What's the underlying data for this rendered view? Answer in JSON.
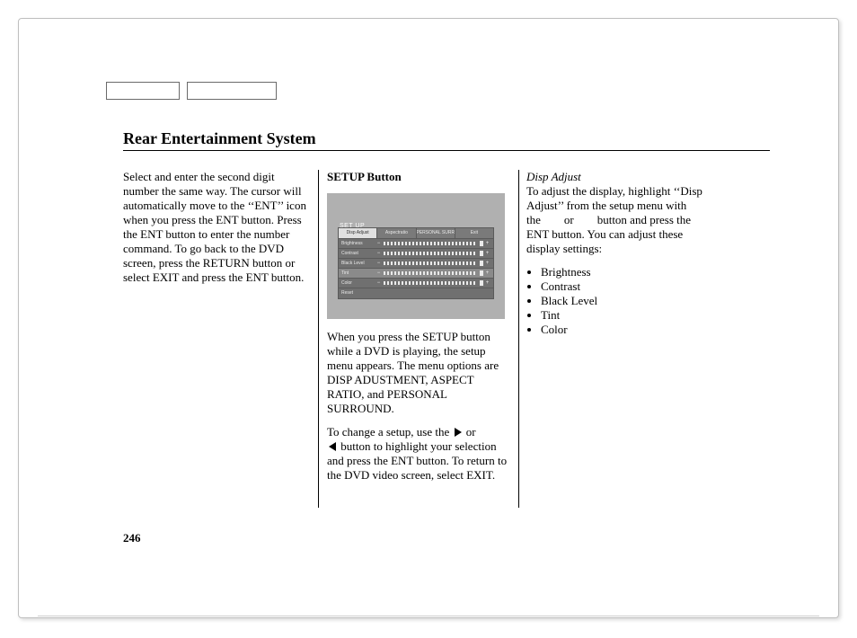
{
  "title": "Rear Entertainment System",
  "page_number": "246",
  "col1": {
    "para1": "Select and enter the second digit number the same way. The cursor will automatically move to the ‘‘ENT’’ icon when you press the ENT button. Press the ENT button to enter the number command. To go back to the DVD screen, press the RETURN button or select EXIT and press the ENT button."
  },
  "col2": {
    "heading": "SETUP Button",
    "para1": "When you press the SETUP button while a DVD is playing, the setup menu appears. The menu options are DISP ADUSTMENT, ASPECT RATIO, and PERSONAL SURROUND.",
    "para2_a": "To change a setup, use the ",
    "para2_or": " or ",
    "para2_b": " button to highlight your selection and press the ENT button. To return to the DVD video screen, select EXIT.",
    "setup_figure": {
      "caption": "SET UP",
      "tabs": [
        {
          "label": "Disp Adjust",
          "active": true
        },
        {
          "label": "Aspectratio",
          "active": false
        },
        {
          "label": "PERSONAL SURROUND",
          "active": false
        },
        {
          "label": "Exit",
          "active": false
        }
      ],
      "rows": [
        {
          "label": "Brightness",
          "highlight": false
        },
        {
          "label": "Contrast",
          "highlight": false
        },
        {
          "label": "Black Level",
          "highlight": false
        },
        {
          "label": "Tint",
          "highlight": true
        },
        {
          "label": "Color",
          "highlight": false
        },
        {
          "label": "Reset",
          "highlight": false,
          "noBar": true
        }
      ]
    }
  },
  "col3": {
    "heading": "Disp Adjust",
    "para1": "To adjust the display, highlight ‘‘Disp Adjust’’ from the setup menu with the        or        button and press the ENT button. You can adjust these display settings:",
    "bullets": [
      "Brightness",
      "Contrast",
      "Black Level",
      "Tint",
      "Color"
    ]
  },
  "icons": {
    "play_right": "▶",
    "play_left": "◀"
  },
  "colors": {
    "page_border": "#bfbfbf",
    "text": "#000000",
    "figure_bg": "#b0b0b0",
    "figure_inner": "#707070"
  }
}
